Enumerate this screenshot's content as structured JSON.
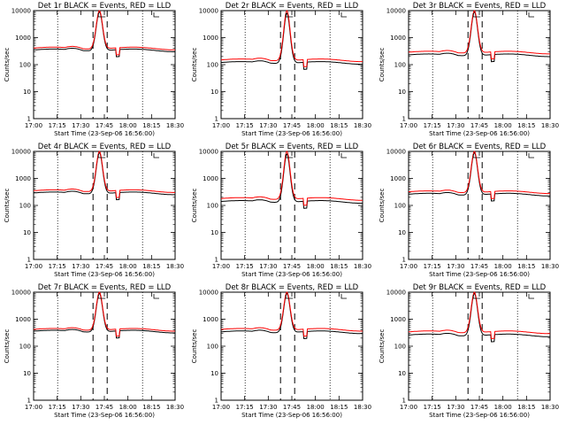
{
  "figure": {
    "legend_text": "BLACK = Events, RED = LLD",
    "series_colors": {
      "events": "#000000",
      "lld": "#ff0000"
    },
    "x_tick_labels": [
      "17:00",
      "17:15",
      "17:30",
      "17:45",
      "18:00",
      "18:15",
      "18:30"
    ],
    "y_tick_labels": [
      "1",
      "10",
      "100",
      "1000",
      "10000"
    ],
    "ylabel": "Counts/sec"
  },
  "chart_data": [
    {
      "type": "line",
      "title": "Det 1r BLACK = Events, RED = LLD",
      "xlabel": "Start Time (23-Sep-06 16:56:00)",
      "ylabel": "Counts/sec",
      "xlim": [
        0,
        100
      ],
      "ylim": [
        1,
        10000
      ],
      "yscale": "log",
      "dashed_lines_x": [
        42,
        52
      ],
      "dotted_lines_x": [
        17,
        77
      ],
      "bg_events": 350,
      "bg_lld": 410,
      "dip_events": 190,
      "dip_lld": 280,
      "peak_events": 9000,
      "peak_lld": 10000
    },
    {
      "type": "line",
      "title": "Det 2r BLACK = Events, RED = LLD",
      "xlabel": "Start Time (23-Sep-06 16:56:00)",
      "ylabel": "Counts/sec",
      "xlim": [
        0,
        100
      ],
      "ylim": [
        1,
        10000
      ],
      "yscale": "log",
      "dashed_lines_x": [
        42,
        52
      ],
      "dotted_lines_x": [
        17,
        77
      ],
      "bg_events": 120,
      "bg_lld": 150,
      "dip_events": 50,
      "dip_lld": 95,
      "peak_events": 8000,
      "peak_lld": 10000
    },
    {
      "type": "line",
      "title": "Det 3r BLACK = Events, RED = LLD",
      "xlabel": "Start Time (23-Sep-06 16:56:00)",
      "ylabel": "Counts/sec",
      "xlim": [
        0,
        100
      ],
      "ylim": [
        1,
        10000
      ],
      "yscale": "log",
      "dashed_lines_x": [
        42,
        52
      ],
      "dotted_lines_x": [
        17,
        77
      ],
      "bg_events": 230,
      "bg_lld": 290,
      "dip_events": 140,
      "dip_lld": 220,
      "peak_events": 9000,
      "peak_lld": 10000
    },
    {
      "type": "line",
      "title": "Det 4r BLACK = Events, RED = LLD",
      "xlabel": "Start Time (23-Sep-06 16:56:00)",
      "ylabel": "Counts/sec",
      "xlim": [
        0,
        100
      ],
      "ylim": [
        1,
        10000
      ],
      "yscale": "log",
      "dashed_lines_x": [
        42,
        52
      ],
      "dotted_lines_x": [
        17,
        77
      ],
      "bg_events": 290,
      "bg_lld": 350,
      "dip_events": 160,
      "dip_lld": 250,
      "peak_events": 9000,
      "peak_lld": 10000
    },
    {
      "type": "line",
      "title": "Det 5r BLACK = Events, RED = LLD",
      "xlabel": "Start Time (23-Sep-06 16:56:00)",
      "ylabel": "Counts/sec",
      "xlim": [
        0,
        100
      ],
      "ylim": [
        1,
        10000
      ],
      "yscale": "log",
      "dashed_lines_x": [
        42,
        52
      ],
      "dotted_lines_x": [
        17,
        77
      ],
      "bg_events": 140,
      "bg_lld": 180,
      "dip_events": 55,
      "dip_lld": 110,
      "peak_events": 8000,
      "peak_lld": 10000
    },
    {
      "type": "line",
      "title": "Det 6r BLACK = Events, RED = LLD",
      "xlabel": "Start Time (23-Sep-06 16:56:00)",
      "ylabel": "Counts/sec",
      "xlim": [
        0,
        100
      ],
      "ylim": [
        1,
        10000
      ],
      "yscale": "log",
      "dashed_lines_x": [
        42,
        52
      ],
      "dotted_lines_x": [
        17,
        77
      ],
      "bg_events": 260,
      "bg_lld": 320,
      "dip_events": 150,
      "dip_lld": 240,
      "peak_events": 9000,
      "peak_lld": 10000
    },
    {
      "type": "line",
      "title": "Det 7r BLACK = Events, RED = LLD",
      "xlabel": "Start Time (23-Sep-06 16:56:00)",
      "ylabel": "Counts/sec",
      "xlim": [
        0,
        100
      ],
      "ylim": [
        1,
        10000
      ],
      "yscale": "log",
      "dashed_lines_x": [
        42,
        52
      ],
      "dotted_lines_x": [
        17,
        77
      ],
      "bg_events": 360,
      "bg_lld": 420,
      "dip_events": 150,
      "dip_lld": 280,
      "peak_events": 9000,
      "peak_lld": 10000
    },
    {
      "type": "line",
      "title": "Det 8r BLACK = Events, RED = LLD",
      "xlabel": "Start Time (23-Sep-06 16:56:00)",
      "ylabel": "Counts/sec",
      "xlim": [
        0,
        100
      ],
      "ylim": [
        1,
        10000
      ],
      "yscale": "log",
      "dashed_lines_x": [
        42,
        52
      ],
      "dotted_lines_x": [
        17,
        77
      ],
      "bg_events": 340,
      "bg_lld": 420,
      "dip_events": 180,
      "dip_lld": 280,
      "peak_events": 9000,
      "peak_lld": 10000
    },
    {
      "type": "line",
      "title": "Det 9r BLACK = Events, RED = LLD",
      "xlabel": "Start Time (23-Sep-06 16:56:00)",
      "ylabel": "Counts/sec",
      "xlim": [
        0,
        100
      ],
      "ylim": [
        1,
        10000
      ],
      "yscale": "log",
      "dashed_lines_x": [
        42,
        52
      ],
      "dotted_lines_x": [
        17,
        77
      ],
      "bg_events": 260,
      "bg_lld": 340,
      "dip_events": 150,
      "dip_lld": 250,
      "peak_events": 9000,
      "peak_lld": 10000
    }
  ]
}
